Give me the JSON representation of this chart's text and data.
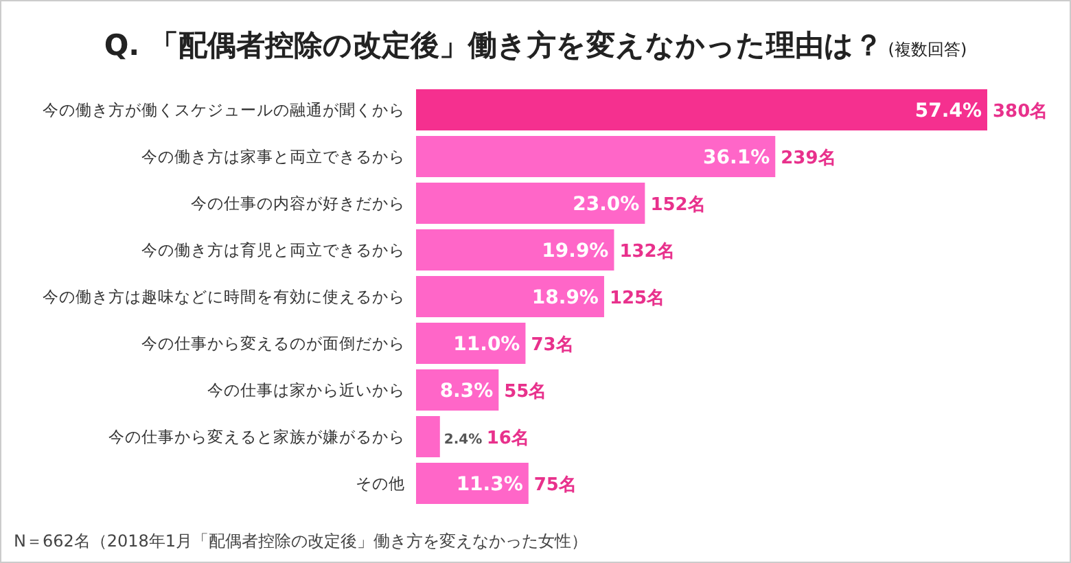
{
  "chart_data": {
    "type": "bar",
    "orientation": "horizontal",
    "title": "Q. 「配偶者控除の改定後」働き方を変えなかった理由は？",
    "subtitle": "(複数回答)",
    "categories": [
      "今の働き方が働くスケジュールの融通が聞くから",
      "今の働き方は家事と両立できるから",
      "今の仕事の内容が好きだから",
      "今の働き方は育児と両立できるから",
      "今の働き方は趣味などに時間を有効に使えるから",
      "今の仕事から変えるのが面倒だから",
      "今の仕事は家から近いから",
      "今の仕事から変えると家族が嫌がるから",
      "その他"
    ],
    "values": [
      57.4,
      36.1,
      23.0,
      19.9,
      18.9,
      11.0,
      8.3,
      2.4,
      11.3
    ],
    "value_labels": [
      "57.4%",
      "36.1%",
      "23.0%",
      "19.9%",
      "18.9%",
      "11.0%",
      "8.3%",
      "2.4%",
      "11.3%"
    ],
    "colors": [
      "#f5308f",
      "#ff66c8",
      "#ff66c8",
      "#ff66c8",
      "#ff66c8",
      "#ff66c8",
      "#ff66c8",
      "#ff66c8",
      "#ff66c8"
    ],
    "annotations": [
      {
        "text": "380名",
        "x": 57.4,
        "y": "今の働き方が働くスケジュールの融通が聞くから"
      },
      {
        "text": "239名",
        "x": 36.1,
        "y": "今の働き方は家事と両立できるから"
      },
      {
        "text": "152名",
        "x": 23.0,
        "y": "今の仕事の内容が好きだから"
      },
      {
        "text": "132名",
        "x": 19.9,
        "y": "今の働き方は育児と両立できるから"
      },
      {
        "text": "125名",
        "x": 18.9,
        "y": "今の働き方は趣味などに時間を有効に使えるから"
      },
      {
        "text": "73名",
        "x": 11.0,
        "y": "今の仕事から変えるのが面倒だから"
      },
      {
        "text": "55名",
        "x": 8.3,
        "y": "今の仕事は家から近いから"
      },
      {
        "text": "16名",
        "x": 2.4,
        "y": "今の仕事から変えると家族が嫌がるから"
      },
      {
        "text": "75名",
        "x": 11.3,
        "y": "その他"
      },
      "N＝662名（2018年1月「配偶者控除の改定後」働き方を変えなかった女性）"
    ]
  }
}
